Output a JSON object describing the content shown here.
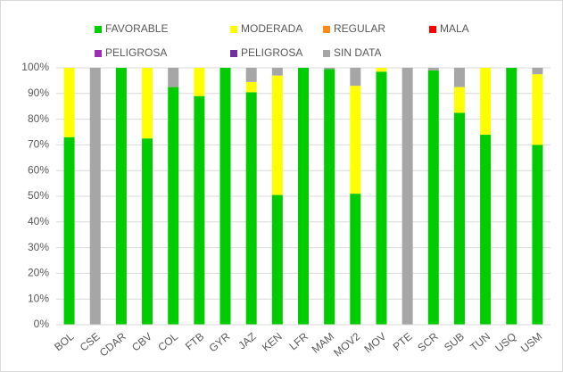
{
  "chart_data": {
    "type": "stacked_bar",
    "categories": [
      "BOL",
      "CSE",
      "CDAR",
      "CBV",
      "COL",
      "FTB",
      "GYR",
      "JAZ",
      "KEN",
      "LFR",
      "MAM",
      "MOV2",
      "MOV",
      "PTE",
      "SCR",
      "SUB",
      "TUN",
      "USQ",
      "USM"
    ],
    "series": [
      {
        "name": "FAVORABLE",
        "color": "#00cc00",
        "values": [
          73,
          0,
          100,
          72.5,
          92.5,
          89,
          100,
          90.5,
          50.5,
          100,
          99.5,
          51,
          98.5,
          0,
          99,
          82.5,
          74,
          100,
          70
        ]
      },
      {
        "name": "MODERADA",
        "color": "#ffff00",
        "values": [
          27,
          0,
          0,
          27.5,
          0,
          11,
          0,
          4,
          46.5,
          0,
          0,
          42,
          1.5,
          0,
          0,
          10,
          26,
          0,
          27.5
        ]
      },
      {
        "name": "REGULAR",
        "color": "#ff8c1a",
        "values": [
          0,
          0,
          0,
          0,
          0,
          0,
          0,
          0,
          0,
          0,
          0,
          0,
          0,
          0,
          0,
          0,
          0,
          0,
          0
        ]
      },
      {
        "name": "MALA",
        "color": "#ff0000",
        "values": [
          0,
          0,
          0,
          0,
          0,
          0,
          0,
          0,
          0,
          0,
          0,
          0,
          0,
          0,
          0,
          0,
          0,
          0,
          0
        ]
      },
      {
        "name": "PELIGROSA",
        "color": "#9b30b5",
        "values": [
          0,
          0,
          0,
          0,
          0,
          0,
          0,
          0,
          0,
          0,
          0,
          0,
          0,
          0,
          0,
          0,
          0,
          0,
          0
        ]
      },
      {
        "name": "PELIGROSA",
        "color": "#7030a0",
        "values": [
          0,
          0,
          0,
          0,
          0,
          0,
          0,
          0,
          0,
          0,
          0,
          0,
          0,
          0,
          0,
          0,
          0,
          0,
          0
        ]
      },
      {
        "name": "SIN DATA",
        "color": "#a6a6a6",
        "values": [
          0,
          100,
          0,
          0,
          7.5,
          0,
          0,
          5.5,
          3,
          0,
          0.5,
          7,
          0,
          100,
          1,
          7.5,
          0,
          0,
          2.5
        ]
      }
    ],
    "ylim": [
      0,
      100
    ],
    "yticks": [
      {
        "value": 0,
        "label": "0%"
      },
      {
        "value": 10,
        "label": "10%"
      },
      {
        "value": 20,
        "label": "20%"
      },
      {
        "value": 30,
        "label": "30%"
      },
      {
        "value": 40,
        "label": "40%"
      },
      {
        "value": 50,
        "label": "50%"
      },
      {
        "value": 60,
        "label": "60%"
      },
      {
        "value": 70,
        "label": "70%"
      },
      {
        "value": 80,
        "label": "80%"
      },
      {
        "value": 90,
        "label": "90%"
      },
      {
        "value": 100,
        "label": "100%"
      }
    ],
    "grid": true
  }
}
